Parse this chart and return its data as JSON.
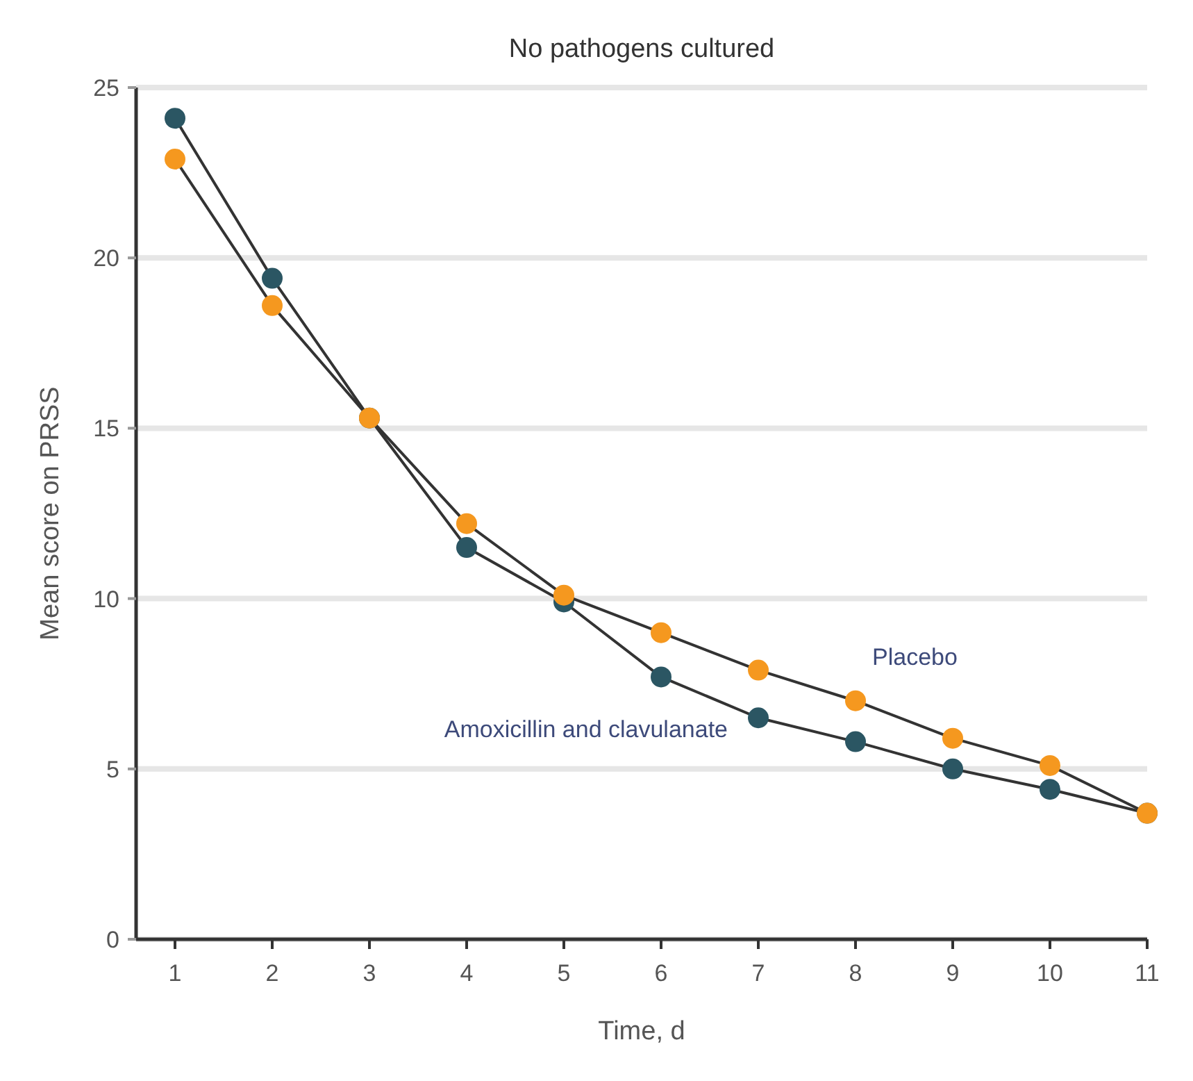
{
  "chart_data": {
    "type": "line",
    "title": "No pathogens cultured",
    "xlabel": "Time, d",
    "ylabel": "Mean score on PRSS",
    "x": [
      1,
      2,
      3,
      4,
      5,
      6,
      7,
      8,
      9,
      10,
      11
    ],
    "xlim": [
      0.6,
      11
    ],
    "xticks": [
      1,
      2,
      3,
      4,
      5,
      6,
      7,
      8,
      9,
      10,
      11
    ],
    "ylim": [
      0,
      25
    ],
    "yticks": [
      0,
      5,
      10,
      15,
      20,
      25
    ],
    "grid": "y",
    "marker": "circle",
    "line_style": "solid",
    "legend": false,
    "series": [
      {
        "name": "Amoxicillin and clavulanate",
        "color": "#2b5663",
        "values": [
          24.1,
          19.4,
          15.3,
          11.5,
          9.9,
          7.7,
          6.5,
          5.8,
          5.0,
          4.4,
          3.7
        ]
      },
      {
        "name": "Placebo",
        "color": "#f5981f",
        "values": [
          22.9,
          18.6,
          15.3,
          12.2,
          10.1,
          9.0,
          7.9,
          7.0,
          5.9,
          5.1,
          3.7
        ]
      }
    ]
  }
}
